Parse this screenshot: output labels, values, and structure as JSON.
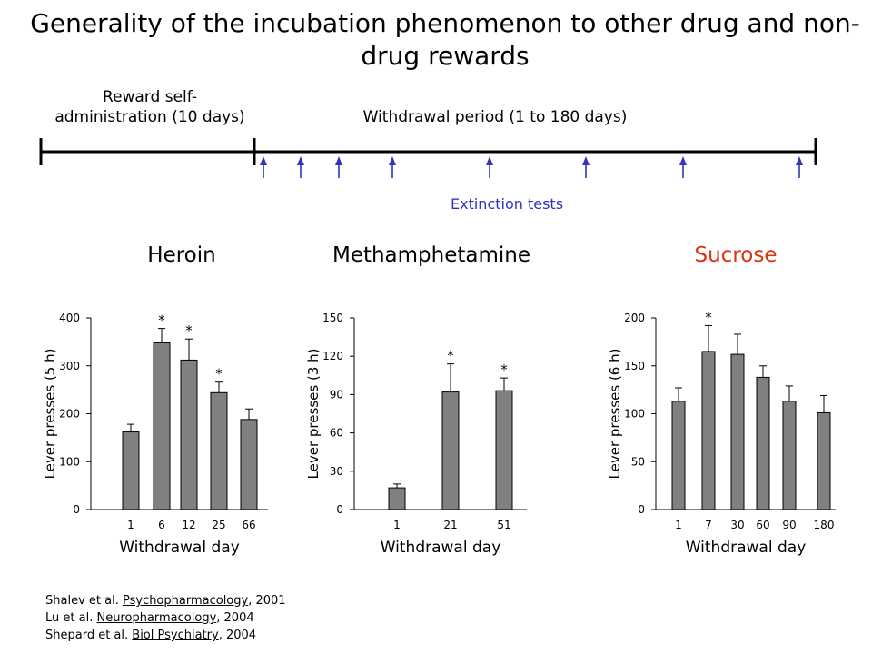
{
  "title": "Generality of the incubation phenomenon to other drug and non-drug rewards",
  "timeline": {
    "self_admin_label": "Reward self-administration (10 days)",
    "self_admin_line1": "Reward self-",
    "self_admin_line2": "administration (10 days)",
    "withdrawal_label": "Withdrawal period (1 to 180 days)",
    "extinction_label": "Extinction tests",
    "arrow_color": "#3333bb"
  },
  "panels": {
    "heroin_title": "Heroin",
    "meth_title": "Methamphetamine",
    "sucrose_title": "Sucrose",
    "sucrose_color": "#dd3311"
  },
  "chart_data": [
    {
      "type": "bar",
      "name": "Heroin",
      "categories": [
        "1",
        "6",
        "12",
        "25",
        "66"
      ],
      "values": [
        162,
        348,
        312,
        244,
        188
      ],
      "errors": [
        16,
        30,
        44,
        22,
        22
      ],
      "significant": [
        false,
        true,
        true,
        true,
        false
      ],
      "xlabel": "Withdrawal day",
      "ylabel": "Lever presses  (5 h)",
      "ylim": [
        0,
        400
      ],
      "yticks": [
        0,
        100,
        200,
        300,
        400
      ]
    },
    {
      "type": "bar",
      "name": "Methamphetamine",
      "categories": [
        "1",
        "21",
        "51"
      ],
      "values": [
        17,
        92,
        93
      ],
      "errors": [
        3,
        22,
        10
      ],
      "significant": [
        false,
        true,
        true
      ],
      "xlabel": "Withdrawal day",
      "ylabel": "Lever presses (3 h)",
      "ylim": [
        0,
        150
      ],
      "yticks": [
        0,
        30,
        60,
        90,
        120,
        150
      ]
    },
    {
      "type": "bar",
      "name": "Sucrose",
      "categories": [
        "1",
        "7",
        "30",
        "60",
        "90",
        "180"
      ],
      "values": [
        113,
        165,
        162,
        138,
        113,
        101
      ],
      "errors": [
        14,
        27,
        21,
        12,
        16,
        18
      ],
      "significant": [
        false,
        true,
        false,
        false,
        false,
        false
      ],
      "xlabel": "Withdrawal day",
      "ylabel": "Lever presses (6 h)",
      "ylim": [
        0,
        200
      ],
      "yticks": [
        0,
        50,
        100,
        150,
        200
      ]
    }
  ],
  "references": [
    {
      "authors": "Shalev et al. ",
      "journal": "Psychopharmacology",
      "year": ", 2001"
    },
    {
      "authors": "Lu et al. ",
      "journal": "Neuropharmacology",
      "year": ", 2004"
    },
    {
      "authors": "Shepard et al. ",
      "journal": "Biol Psychiatry",
      "year": ", 2004"
    }
  ]
}
